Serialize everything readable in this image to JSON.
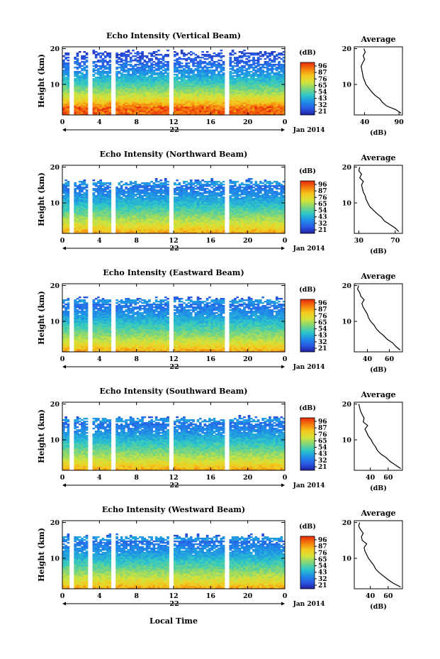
{
  "figure": {
    "bottom_label": "Local Time",
    "date_label": "Jan 2014",
    "day_label": "22",
    "ylabel": "Height (km)",
    "avg_title": "Average",
    "avg_xlabel": "(dB)",
    "colorbar_unit": "(dB)",
    "colorbar_ticks": [
      "96",
      "87",
      "76",
      "65",
      "54",
      "43",
      "32",
      "21"
    ],
    "colorbar_colors": [
      "#e8280c",
      "#f57c0c",
      "#f5c81e",
      "#d4e43a",
      "#7ed67a",
      "#2ec8c8",
      "#1e90e8",
      "#2a5ae6",
      "#2020a0"
    ]
  },
  "chart_data": [
    {
      "type": "heatmap",
      "title": "Echo Intensity (Vertical Beam)",
      "x_ticks": [
        "0",
        "4",
        "8",
        "12",
        "16",
        "20",
        "0"
      ],
      "y_ticks": [
        "20",
        "10"
      ],
      "xlim": [
        0,
        24
      ],
      "ylim": [
        1.5,
        20.5
      ],
      "colorbar_ticks": [
        "96",
        "87",
        "76",
        "65",
        "54",
        "43",
        "32",
        "21"
      ],
      "gaps_hours": [
        1.0,
        3.0,
        5.5,
        11.8,
        17.8
      ],
      "avg_profile": {
        "x_ticks": [
          "40",
          "90"
        ],
        "xlim": [
          25,
          95
        ],
        "height_km": [
          2,
          3,
          4,
          5,
          6,
          7,
          8,
          9,
          10,
          11,
          12,
          13,
          14,
          15,
          16,
          17,
          18,
          19,
          20
        ],
        "value_db": [
          93,
          85,
          72,
          66,
          62,
          55,
          50,
          46,
          42,
          40,
          38,
          37,
          36,
          35,
          37,
          40,
          38,
          41,
          39
        ]
      }
    },
    {
      "type": "heatmap",
      "title": "Echo Intensity (Northward Beam)",
      "x_ticks": [
        "0",
        "4",
        "8",
        "12",
        "16",
        "20",
        "0"
      ],
      "y_ticks": [
        "20",
        "10"
      ],
      "xlim": [
        0,
        24
      ],
      "ylim": [
        1.5,
        20.5
      ],
      "colorbar_ticks": [
        "96",
        "87",
        "76",
        "65",
        "54",
        "43",
        "32",
        "21"
      ],
      "gaps_hours": [
        1.0,
        3.0,
        5.5,
        11.8,
        17.8
      ],
      "avg_profile": {
        "x_ticks": [
          "30",
          "70"
        ],
        "xlim": [
          25,
          78
        ],
        "height_km": [
          2,
          3,
          4,
          5,
          6,
          7,
          8,
          9,
          10,
          11,
          12,
          13,
          14,
          15,
          16,
          17,
          18,
          19,
          20
        ],
        "value_db": [
          74,
          70,
          64,
          58,
          55,
          50,
          46,
          42,
          40,
          38,
          37,
          35,
          34,
          33,
          35,
          31,
          33,
          30,
          31
        ]
      }
    },
    {
      "type": "heatmap",
      "title": "Echo Intensity (Eastward Beam)",
      "x_ticks": [
        "0",
        "4",
        "8",
        "12",
        "16",
        "20",
        "0"
      ],
      "y_ticks": [
        "20",
        "10"
      ],
      "xlim": [
        0,
        24
      ],
      "ylim": [
        1.5,
        20.5
      ],
      "colorbar_ticks": [
        "96",
        "87",
        "76",
        "65",
        "54",
        "43",
        "32",
        "21"
      ],
      "gaps_hours": [
        1.0,
        3.0,
        5.5,
        11.8,
        17.8
      ],
      "avg_profile": {
        "x_ticks": [
          "40",
          "60"
        ],
        "xlim": [
          28,
          72
        ],
        "height_km": [
          2,
          3,
          4,
          5,
          6,
          7,
          8,
          9,
          10,
          11,
          12,
          13,
          14,
          15,
          16,
          17,
          18,
          19,
          20
        ],
        "value_db": [
          70,
          66,
          63,
          58,
          55,
          51,
          48,
          46,
          43,
          41,
          40,
          38,
          36,
          35,
          37,
          34,
          33,
          31,
          32
        ]
      }
    },
    {
      "type": "heatmap",
      "title": "Echo Intensity (Southward Beam)",
      "x_ticks": [
        "0",
        "4",
        "8",
        "12",
        "16",
        "20",
        "0"
      ],
      "y_ticks": [
        "20",
        "10"
      ],
      "xlim": [
        0,
        24
      ],
      "ylim": [
        1.5,
        20.5
      ],
      "colorbar_ticks": [
        "96",
        "87",
        "76",
        "65",
        "54",
        "43",
        "32",
        "21"
      ],
      "gaps_hours": [
        1.0,
        3.0,
        5.5,
        11.8,
        17.8
      ],
      "avg_profile": {
        "x_ticks": [
          "40",
          "60"
        ],
        "xlim": [
          22,
          76
        ],
        "height_km": [
          2,
          3,
          4,
          5,
          6,
          7,
          8,
          9,
          10,
          11,
          12,
          13,
          14,
          15,
          16,
          17,
          18,
          19,
          20
        ],
        "value_db": [
          74,
          68,
          62,
          58,
          52,
          48,
          46,
          43,
          41,
          38,
          36,
          34,
          37,
          32,
          33,
          31,
          29,
          28,
          27
        ]
      }
    },
    {
      "type": "heatmap",
      "title": "Echo Intensity (Westward Beam)",
      "x_ticks": [
        "0",
        "4",
        "8",
        "12",
        "16",
        "20",
        "0"
      ],
      "y_ticks": [
        "20",
        "10"
      ],
      "xlim": [
        0,
        24
      ],
      "ylim": [
        1.5,
        20.5
      ],
      "colorbar_ticks": [
        "96",
        "87",
        "76",
        "65",
        "54",
        "43",
        "32",
        "21"
      ],
      "gaps_hours": [
        1.0,
        3.0,
        5.5,
        11.8,
        17.8
      ],
      "avg_profile": {
        "x_ticks": [
          "40",
          "60"
        ],
        "xlim": [
          22,
          76
        ],
        "height_km": [
          2,
          3,
          4,
          5,
          6,
          7,
          8,
          9,
          10,
          11,
          12,
          13,
          14,
          15,
          16,
          17,
          18,
          19,
          20
        ],
        "value_db": [
          74,
          66,
          60,
          55,
          50,
          46,
          44,
          41,
          38,
          36,
          34,
          33,
          36,
          31,
          30,
          32,
          29,
          27,
          28
        ]
      }
    }
  ]
}
